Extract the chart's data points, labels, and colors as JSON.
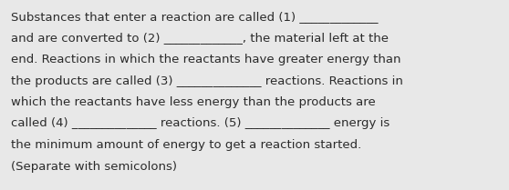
{
  "background_color": "#e8e8e8",
  "text_color": "#2a2a2a",
  "font_size": 9.5,
  "font_family": "DejaVu Sans",
  "lines": [
    "Substances that enter a reaction are called (1) _____________",
    "and are converted to (2) _____________, the material left at the",
    "end. Reactions in which the reactants have greater energy than",
    "the products are called (3) ______________ reactions. Reactions in",
    "which the reactants have less energy than the products are",
    "called (4) ______________ reactions. (5) ______________ energy is",
    "the minimum amount of energy to get a reaction started.",
    "(Separate with semicolons)"
  ]
}
